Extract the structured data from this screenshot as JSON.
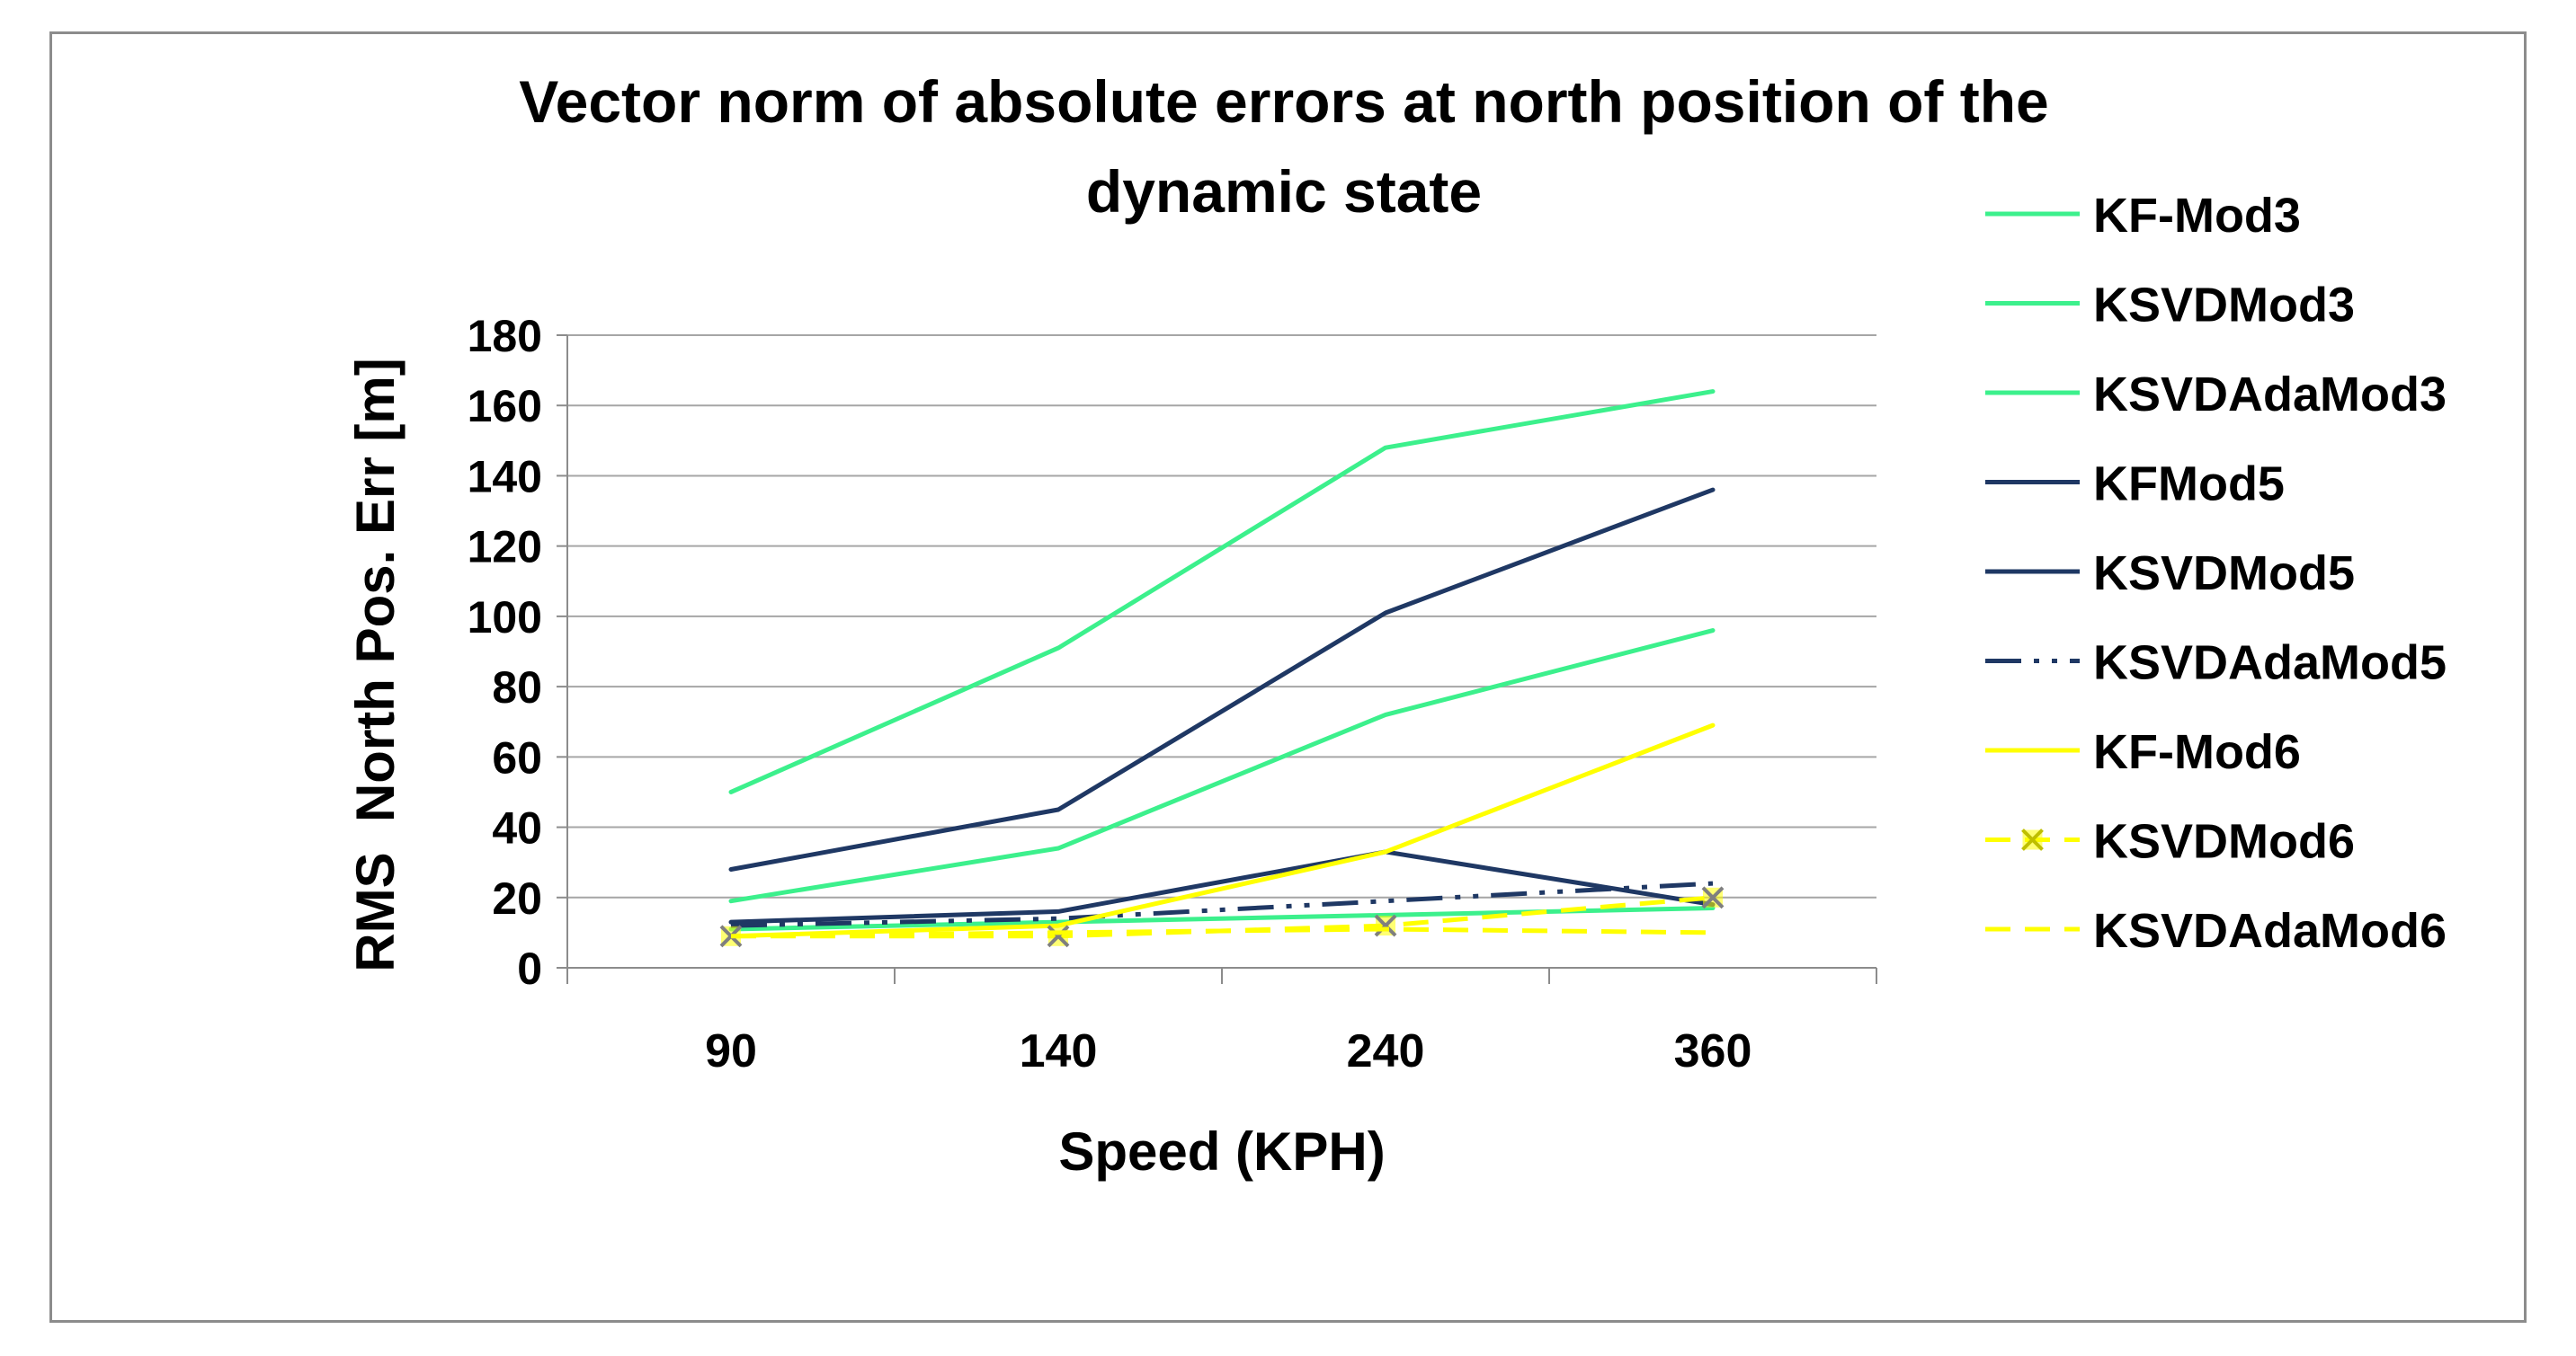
{
  "chart_data": {
    "type": "line",
    "title_lines": [
      "Vector norm of absolute errors at north position of the",
      "dynamic state"
    ],
    "xlabel": "Speed (KPH)",
    "ylabel": "RMS  North Pos. Err [m]",
    "categories": [
      "90",
      "140",
      "240",
      "360"
    ],
    "ylim": [
      0,
      180
    ],
    "yticks": [
      "0",
      "20",
      "40",
      "60",
      "80",
      "100",
      "120",
      "140",
      "160",
      "180"
    ],
    "grid": "horizontal",
    "legend_position": "right",
    "series": [
      {
        "name": "KF-Mod3",
        "values": [
          50,
          91,
          148,
          164
        ],
        "color": "#3cf08c",
        "style": "solid",
        "marker": "none"
      },
      {
        "name": "KSVDMod3",
        "values": [
          19,
          34,
          72,
          96
        ],
        "color": "#3cf08c",
        "style": "solid",
        "marker": "none"
      },
      {
        "name": "KSVDAdaMod3",
        "values": [
          11,
          13,
          15,
          17
        ],
        "color": "#3cf08c",
        "style": "solid",
        "marker": "none"
      },
      {
        "name": "KFMod5",
        "values": [
          28,
          45,
          101,
          136
        ],
        "color": "#1f3864",
        "style": "solid",
        "marker": "none"
      },
      {
        "name": "KSVDMod5",
        "values": [
          13,
          16,
          33,
          18
        ],
        "color": "#1f3864",
        "style": "solid",
        "marker": "none"
      },
      {
        "name": "KSVDAdaMod5",
        "values": [
          12,
          14,
          19,
          24
        ],
        "color": "#1f3864",
        "style": "dashdot",
        "marker": "none"
      },
      {
        "name": "KF-Mod6",
        "values": [
          9,
          12,
          33,
          69
        ],
        "color": "#ffff00",
        "style": "solid",
        "marker": "none"
      },
      {
        "name": "KSVDMod6",
        "values": [
          9,
          9,
          12,
          20
        ],
        "color": "#ffff00",
        "style": "dashed",
        "marker": "x"
      },
      {
        "name": "KSVDAdaMod6",
        "values": [
          9,
          10,
          11,
          10
        ],
        "color": "#ffff00",
        "style": "dashed",
        "marker": "none"
      }
    ]
  }
}
